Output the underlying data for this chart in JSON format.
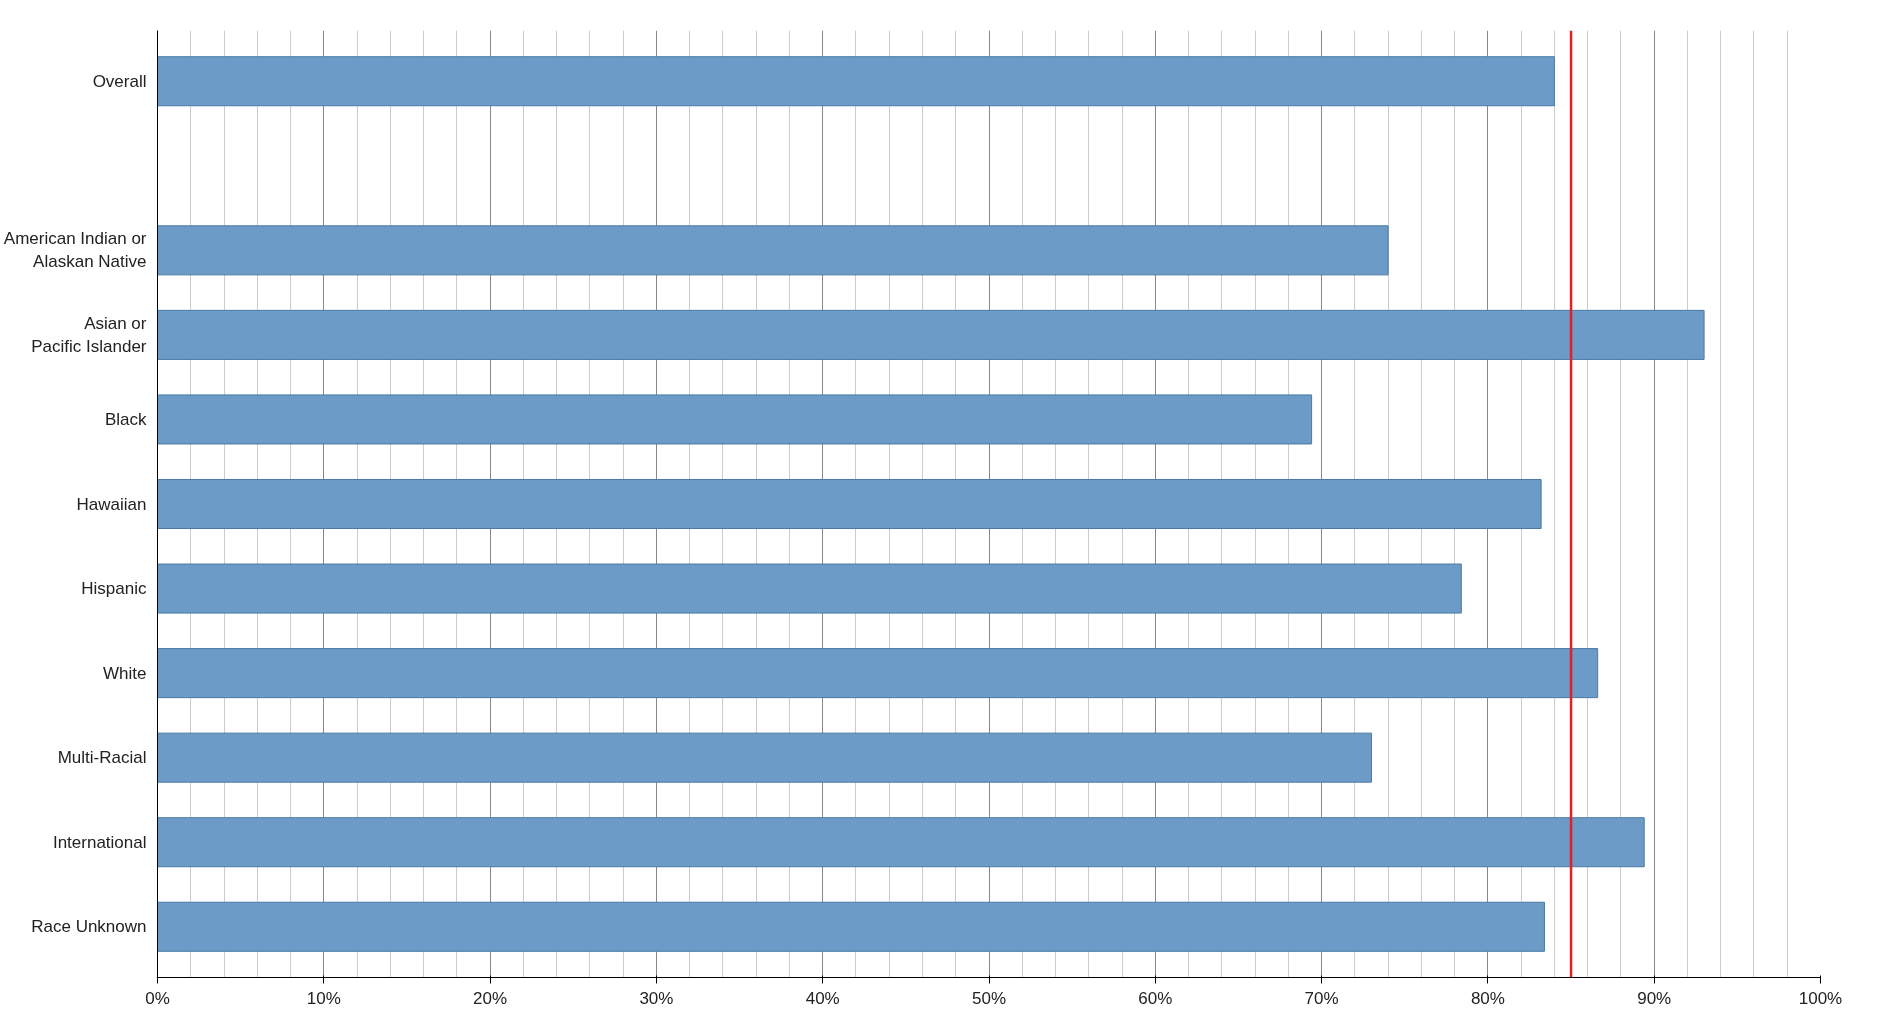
{
  "chart_data": {
    "type": "bar",
    "orientation": "horizontal",
    "categories": [
      "Overall",
      null,
      "American Indian or\nAlaskan Native",
      "Asian or\nPacific Islander",
      "Black",
      "Hawaiian",
      "Hispanic",
      "White",
      "Multi-Racial",
      "International",
      "Race Unknown"
    ],
    "values": [
      84,
      null,
      74,
      93,
      69.4,
      83.2,
      78.4,
      86.6,
      73,
      89.4,
      83.4
    ],
    "color": "#6b9bc6",
    "xlim": [
      0,
      100
    ],
    "xticks": [
      {
        "value": 0,
        "label": "0%"
      },
      {
        "value": 10,
        "label": "10%"
      },
      {
        "value": 20,
        "label": "20%"
      },
      {
        "value": 30,
        "label": "30%"
      },
      {
        "value": 40,
        "label": "40%"
      },
      {
        "value": 50,
        "label": "50%"
      },
      {
        "value": 60,
        "label": "60%"
      },
      {
        "value": 70,
        "label": "70%"
      },
      {
        "value": 80,
        "label": "80%"
      },
      {
        "value": 90,
        "label": "90%"
      },
      {
        "value": 100,
        "label": "100%"
      }
    ],
    "ref_lines": [
      {
        "axis": "x",
        "value": 85,
        "label": null,
        "color": "#e0202a"
      }
    ],
    "grid": "x"
  }
}
